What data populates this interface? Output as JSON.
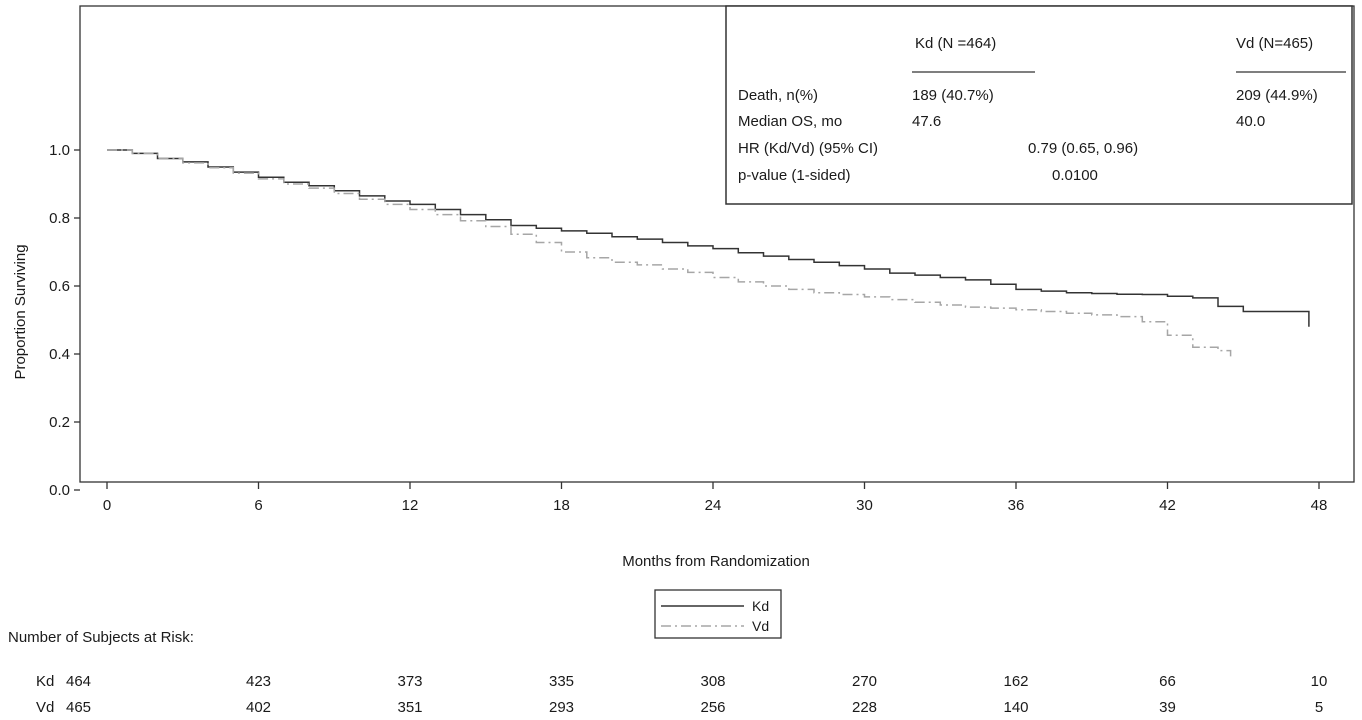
{
  "chart_data": {
    "type": "line",
    "xlabel": "Months from Randomization",
    "ylabel": "Proportion Surviving",
    "xlim": [
      0,
      48
    ],
    "ylim": [
      0,
      1.0
    ],
    "xticks": [
      0,
      6,
      12,
      18,
      24,
      30,
      36,
      42,
      48
    ],
    "yticks": [
      0.0,
      0.2,
      0.4,
      0.6,
      0.8,
      1.0
    ],
    "xtick_labels": [
      "0",
      "6",
      "12",
      "18",
      "24",
      "30",
      "36",
      "42",
      "48"
    ],
    "ytick_labels": [
      "0.0",
      "0.2",
      "0.4",
      "0.6",
      "0.8",
      "1.0"
    ],
    "grid": false,
    "series": [
      {
        "name": "Kd",
        "style": "solid",
        "color": "#333333",
        "step": true,
        "x": [
          0,
          1,
          2,
          3,
          4,
          5,
          6,
          7,
          8,
          9,
          10,
          11,
          12,
          13,
          14,
          15,
          16,
          17,
          18,
          19,
          20,
          21,
          22,
          23,
          24,
          25,
          26,
          27,
          28,
          29,
          30,
          31,
          32,
          33,
          34,
          35,
          36,
          37,
          38,
          39,
          40,
          41,
          42,
          43,
          44,
          45,
          46,
          47,
          47.6
        ],
        "y": [
          1.0,
          0.99,
          0.975,
          0.965,
          0.95,
          0.935,
          0.92,
          0.905,
          0.895,
          0.88,
          0.865,
          0.85,
          0.84,
          0.825,
          0.81,
          0.795,
          0.778,
          0.77,
          0.762,
          0.755,
          0.745,
          0.738,
          0.728,
          0.718,
          0.71,
          0.698,
          0.688,
          0.678,
          0.67,
          0.66,
          0.65,
          0.638,
          0.632,
          0.625,
          0.618,
          0.605,
          0.59,
          0.585,
          0.58,
          0.578,
          0.576,
          0.575,
          0.57,
          0.565,
          0.54,
          0.525,
          0.525,
          0.525,
          0.48
        ]
      },
      {
        "name": "Vd",
        "style": "dashdot",
        "color": "#a6a6a6",
        "step": true,
        "x": [
          0,
          1,
          2,
          3,
          4,
          5,
          6,
          7,
          8,
          9,
          10,
          11,
          12,
          13,
          14,
          15,
          16,
          17,
          18,
          19,
          20,
          21,
          22,
          23,
          24,
          25,
          26,
          27,
          28,
          29,
          30,
          31,
          32,
          33,
          34,
          35,
          36,
          37,
          38,
          39,
          40,
          41,
          42,
          43,
          44,
          44.5
        ],
        "y": [
          1.0,
          0.99,
          0.975,
          0.962,
          0.948,
          0.932,
          0.915,
          0.9,
          0.888,
          0.872,
          0.855,
          0.84,
          0.825,
          0.81,
          0.792,
          0.775,
          0.752,
          0.728,
          0.7,
          0.683,
          0.67,
          0.662,
          0.65,
          0.64,
          0.625,
          0.612,
          0.6,
          0.59,
          0.58,
          0.575,
          0.568,
          0.56,
          0.552,
          0.544,
          0.538,
          0.535,
          0.53,
          0.525,
          0.52,
          0.515,
          0.51,
          0.495,
          0.455,
          0.42,
          0.41,
          0.39
        ]
      }
    ],
    "legend_placement": "bottom-center",
    "stats_box": {
      "placement": "top-right",
      "col_headers": [
        "Kd (N =464)",
        "Vd (N=465)"
      ],
      "rows": [
        {
          "label": "Death, n(%)",
          "kd": "189 (40.7%)",
          "vd": "209 (44.9%)"
        },
        {
          "label": "Median OS, mo",
          "kd": "47.6",
          "vd": "40.0"
        },
        {
          "label": "HR (Kd/Vd) (95% CI)",
          "combined": "0.79 (0.65, 0.96)"
        },
        {
          "label": "p-value (1-sided)",
          "combined": "0.0100"
        }
      ]
    },
    "at_risk": {
      "title": "Number of Subjects at Risk:",
      "times": [
        0,
        6,
        12,
        18,
        24,
        30,
        36,
        42,
        48
      ],
      "rows": [
        {
          "name": "Kd",
          "values": [
            "464",
            "423",
            "373",
            "335",
            "308",
            "270",
            "162",
            "66",
            "10"
          ]
        },
        {
          "name": "Vd",
          "values": [
            "465",
            "402",
            "351",
            "293",
            "256",
            "228",
            "140",
            "39",
            "5"
          ]
        }
      ]
    }
  }
}
